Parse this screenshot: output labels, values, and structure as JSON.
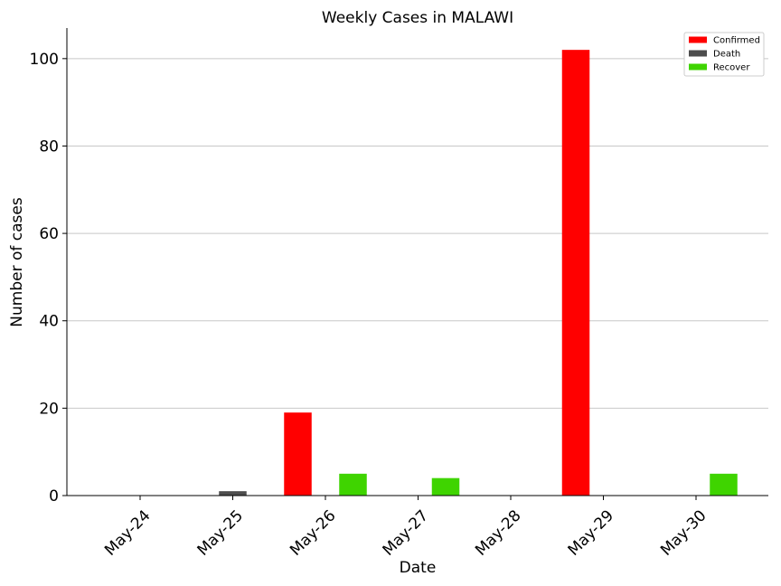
{
  "chart_data": {
    "type": "bar",
    "title": "Weekly Cases in MALAWI",
    "xlabel": "Date",
    "ylabel": "Number of cases",
    "categories": [
      "May-24",
      "May-25",
      "May-26",
      "May-27",
      "May-28",
      "May-29",
      "May-30"
    ],
    "series": [
      {
        "name": "Confirmed",
        "color": "#ff0000",
        "values": [
          0,
          0,
          19,
          0,
          0,
          102,
          0
        ]
      },
      {
        "name": "Death",
        "color": "#4d4d4d",
        "values": [
          0,
          1,
          0,
          0,
          0,
          0,
          0
        ]
      },
      {
        "name": "Recover",
        "color": "#3fd400",
        "values": [
          0,
          0,
          5,
          4,
          0,
          0,
          5
        ]
      }
    ],
    "ylim": [
      0,
      107
    ],
    "yticks": [
      0,
      20,
      40,
      60,
      80,
      100
    ],
    "grid": "horizontal",
    "legend_position": "top-right"
  }
}
